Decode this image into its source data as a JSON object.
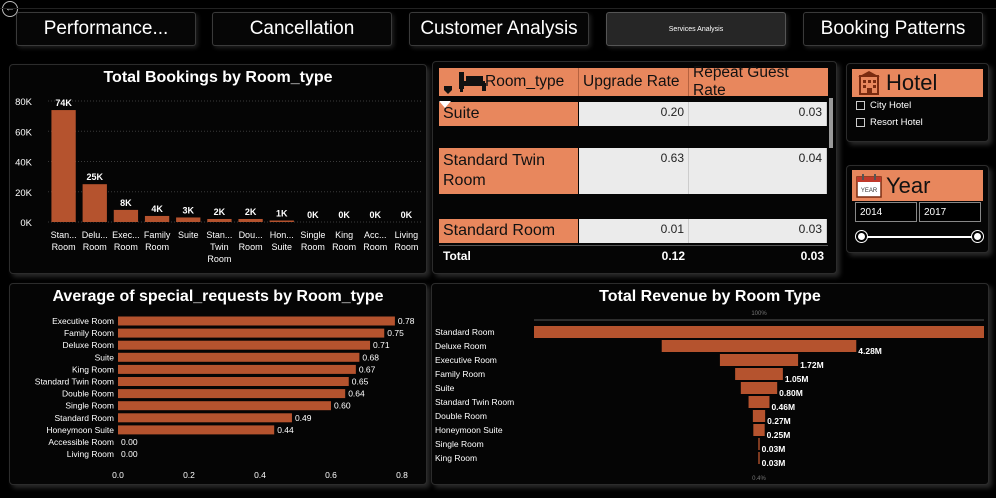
{
  "nav": {
    "tabs": [
      {
        "label": "Performance..."
      },
      {
        "label": "Cancellation"
      },
      {
        "label": "Customer Analysis"
      },
      {
        "label": "Services Analysis"
      },
      {
        "label": "Booking Patterns"
      }
    ]
  },
  "colors": {
    "accent": "#e8875d",
    "bar": "#b5532e",
    "background": "#000000"
  },
  "table": {
    "headers": [
      "Room_type",
      "Upgrade Rate",
      "Repeat Guest Rate"
    ],
    "rows": [
      {
        "name": "Suite",
        "upgrade": "0.20",
        "repeat": "0.03"
      },
      {
        "name": "Standard Twin Room",
        "upgrade": "0.63",
        "repeat": "0.04"
      },
      {
        "name": "Standard Room",
        "upgrade": "0.01",
        "repeat": "0.03"
      }
    ],
    "total": {
      "label": "Total",
      "upgrade": "0.12",
      "repeat": "0.03"
    }
  },
  "slicers": {
    "hotel": {
      "title": "Hotel",
      "options": [
        "City Hotel",
        "Resort Hotel"
      ]
    },
    "year": {
      "title": "Year",
      "icon_text": "YEAR",
      "from": "2014",
      "to": "2017"
    }
  },
  "chart_data": [
    {
      "type": "bar",
      "title": "Total Bookings by Room_type",
      "categories": [
        "Standard Room",
        "Deluxe Room",
        "Executive Room",
        "Family Room",
        "Suite",
        "Standard Twin Room",
        "Double Room",
        "Honeymoon Suite",
        "Single Room",
        "King Room",
        "Accessible Room",
        "Living Room"
      ],
      "tick_labels": [
        [
          "Stan...",
          "Room"
        ],
        [
          "Delu...",
          "Room"
        ],
        [
          "Exec...",
          "Room"
        ],
        [
          "Family",
          "Room"
        ],
        [
          "Suite"
        ],
        [
          "Stan...",
          "Twin",
          "Room"
        ],
        [
          "Dou...",
          "Room"
        ],
        [
          "Hon...",
          "Suite"
        ],
        [
          "Single",
          "Room"
        ],
        [
          "King",
          "Room"
        ],
        [
          "Acc...",
          "Room"
        ],
        [
          "Living",
          "Room"
        ]
      ],
      "values": [
        74000,
        25000,
        8000,
        4000,
        3000,
        2000,
        2000,
        1000,
        0,
        0,
        0,
        0
      ],
      "data_labels": [
        "74K",
        "25K",
        "8K",
        "4K",
        "3K",
        "2K",
        "2K",
        "1K",
        "0K",
        "0K",
        "0K",
        "0K"
      ],
      "ylim": [
        0,
        80000
      ],
      "yticks": [
        0,
        20000,
        40000,
        60000,
        80000
      ],
      "ytick_labels": [
        "0K",
        "20K",
        "40K",
        "60K",
        "80K"
      ],
      "grid": true
    },
    {
      "type": "bar",
      "orientation": "horizontal",
      "title": "Average of special_requests by Room_type",
      "categories": [
        "Executive Room",
        "Family Room",
        "Deluxe Room",
        "Suite",
        "King Room",
        "Standard Twin Room",
        "Double Room",
        "Single Room",
        "Standard Room",
        "Honeymoon Suite",
        "Accessible Room",
        "Living Room"
      ],
      "values": [
        0.78,
        0.75,
        0.71,
        0.68,
        0.67,
        0.65,
        0.64,
        0.6,
        0.49,
        0.44,
        0.0,
        0.0
      ],
      "data_labels": [
        "0.78",
        "0.75",
        "0.71",
        "0.68",
        "0.67",
        "0.65",
        "0.64",
        "0.60",
        "0.49",
        "0.44",
        "0.00",
        "0.00"
      ],
      "xlim": [
        0,
        0.8
      ],
      "xticks": [
        0,
        0.2,
        0.4,
        0.6,
        0.8
      ],
      "xtick_labels": [
        "0.0",
        "0.2",
        "0.4",
        "0.6",
        "0.8"
      ]
    },
    {
      "type": "bar",
      "style": "funnel",
      "title": "Total Revenue by Room Type",
      "categories": [
        "Standard Room",
        "Deluxe Room",
        "Executive Room",
        "Family Room",
        "Suite",
        "Standard Twin Room",
        "Double Room",
        "Honeymoon Suite",
        "Single Room",
        "King Room"
      ],
      "values": [
        9.9,
        4.28,
        1.72,
        1.05,
        0.8,
        0.46,
        0.27,
        0.25,
        0.03,
        0.03
      ],
      "unit": "M",
      "data_labels": [
        "",
        "4.28M",
        "1.72M",
        "1.05M",
        "0.80M",
        "0.46M",
        "0.27M",
        "0.25M",
        "0.03M",
        "0.03M"
      ],
      "top_percent_label": "100%",
      "bottom_percent_label": "0.4%"
    }
  ]
}
